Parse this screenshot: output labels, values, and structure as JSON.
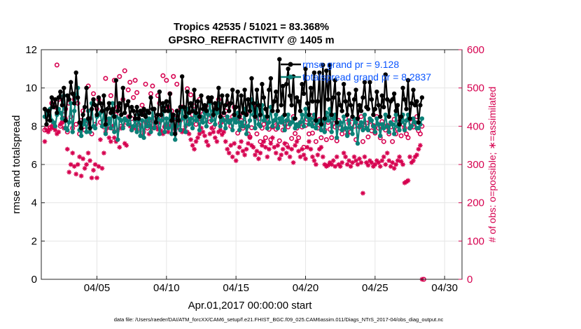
{
  "chart_data": {
    "type": "line",
    "title": "Tropics 42535 / 51021 = 83.368%",
    "subtitle": "GPSRO_REFRACTIVITY @ 1405 m",
    "xlabel": "Apr.01,2017 00:00:00 start",
    "ylabel": "rmse and totalspread",
    "ylabel_right": "# of obs: o=possible; ∗=assimilated",
    "footnote": "data file: /Users/raeder/DAI/ATM_forcXX/CAM6_setup/f.e21.FHIST_BGC.f09_025.CAM6assim.011/Diags_NTrS_2017-04/obs_diag_output.nc",
    "xlim": [
      1,
      31.25
    ],
    "ylim": [
      0,
      12
    ],
    "ylim_right": [
      0,
      600
    ],
    "x_ticks": [
      5,
      10,
      15,
      20,
      25,
      30
    ],
    "x_tick_labels": [
      "04/05",
      "04/10",
      "04/15",
      "04/20",
      "04/25",
      "04/30"
    ],
    "y_ticks": [
      0,
      2,
      4,
      6,
      8,
      10,
      12
    ],
    "y_ticks_right": [
      0,
      100,
      200,
      300,
      400,
      500,
      600
    ],
    "legend": {
      "position": "top-right",
      "entries": [
        "rmse grand pr = 9.128",
        "totalspread grand pr = 8.2837"
      ]
    },
    "series": [
      {
        "name": "rmse grand pr = 9.128",
        "axis": "left",
        "color": "#000000",
        "marker": "filled-circle",
        "values": [
          8.9,
          8.1,
          8.8,
          8.3,
          9.5,
          9.0,
          9.4,
          8.7,
          9.5,
          9.8,
          9.1,
          10.0,
          8.3,
          9.6,
          9.4,
          10.3,
          9.7,
          9.2,
          10.8,
          9.5,
          8.2,
          7.9,
          8.6,
          9.0,
          10.0,
          8.4,
          7.9,
          8.9,
          9.4,
          9.1,
          8.6,
          9.5,
          9.2,
          8.8,
          9.6,
          8.1,
          8.9,
          9.2,
          8.7,
          8.9,
          8.5,
          10.4,
          8.8,
          9.2,
          8.6,
          10.0,
          8.7,
          9.1,
          9.3,
          8.5,
          9.0,
          8.8,
          8.4,
          9.0,
          8.4,
          8.8,
          8.6,
          8.9,
          8.5,
          8.8,
          8.7,
          9.5,
          8.9,
          8.9,
          8.2,
          8.6,
          9.8,
          8.6,
          9.2,
          8.8,
          9.3,
          8.8,
          9.7,
          8.3,
          8.6,
          7.6,
          8.8,
          8.3,
          9.0,
          10.6,
          9.0,
          8.5,
          9.8,
          8.7,
          9.2,
          8.8,
          9.9,
          8.7,
          9.3,
          8.5,
          9.6,
          8.9,
          9.1,
          8.8,
          9.5,
          9.3,
          9.5,
          8.6,
          9.2,
          8.9,
          10.0,
          8.5,
          9.6,
          8.7,
          9.1,
          9.6,
          8.8,
          9.2,
          9.9,
          8.6,
          9.0,
          9.8,
          8.5,
          9.6,
          8.7,
          9.9,
          8.6,
          9.4,
          8.8,
          10.5,
          9.2,
          8.5,
          9.9,
          9.1,
          8.6,
          10.2,
          9.5,
          8.9,
          8.5,
          9.9,
          10.5,
          8.8,
          9.3,
          9.8,
          8.8,
          11.5,
          9.1,
          10.1,
          8.6,
          10.2,
          11.0,
          9.6,
          9.1,
          10.6,
          8.4,
          9.5,
          9.3,
          8.8,
          10.2,
          9.7,
          11.0,
          9.2,
          8.6,
          10.0,
          9.3,
          10.8,
          8.3,
          9.3,
          10.8,
          8.1,
          11.2,
          8.4,
          10.9,
          9.4,
          11.2,
          8.6,
          9.5,
          10.4,
          8.2,
          9.7,
          9.1,
          8.8,
          10.2,
          9.3,
          8.6,
          9.7,
          9.1,
          8.5,
          9.4,
          9.9,
          8.4,
          9.1,
          8.8,
          9.5,
          10.3,
          9.0,
          8.9,
          10.3,
          9.4,
          8.6,
          8.9,
          9.8,
          9.1,
          8.5,
          9.6,
          9.0,
          10.7,
          9.4,
          8.5,
          9.3,
          9.4,
          9.7,
          8.8,
          9.1,
          8.1,
          8.5,
          10.0,
          9.4,
          8.9,
          10.4,
          8.4,
          9.2,
          9.9,
          9.1,
          9.3,
          8.2,
          9.1,
          9.5
        ],
        "x_start": 1.25,
        "x_step": 0.125
      },
      {
        "name": "totalspread grand pr = 8.2837",
        "axis": "left",
        "color": "#0b8077",
        "marker": "filled-circle",
        "values": [
          8.5,
          8.7,
          8.6,
          8.9,
          8.3,
          8.2,
          8.0,
          8.6,
          8.9,
          8.7,
          8.4,
          9.6,
          7.9,
          7.8,
          8.2,
          9.2,
          7.7,
          8.8,
          9.6,
          10.0,
          7.8,
          7.5,
          8.1,
          8.3,
          7.7,
          8.8,
          7.7,
          9.2,
          8.0,
          7.9,
          8.5,
          8.6,
          8.7,
          8.0,
          8.8,
          7.6,
          8.1,
          8.4,
          7.9,
          9.2,
          7.7,
          8.5,
          7.3,
          8.4,
          8.3,
          7.9,
          8.4,
          8.3,
          8.1,
          8.5,
          7.8,
          8.0,
          8.3,
          7.7,
          8.6,
          7.5,
          8.3,
          7.4,
          8.6,
          8.0,
          8.4,
          7.7,
          8.9,
          7.9,
          8.2,
          8.4,
          7.6,
          8.3,
          9.0,
          7.7,
          8.4,
          7.9,
          8.8,
          7.6,
          8.4,
          7.3,
          8.0,
          8.7,
          7.8,
          8.9,
          8.4,
          7.7,
          8.9,
          8.1,
          8.4,
          7.9,
          8.8,
          8.3,
          8.6,
          7.8,
          8.5,
          8.2,
          8.7,
          8.0,
          8.6,
          9.2,
          8.3,
          8.8,
          8.1,
          8.7,
          9.2,
          8.0,
          8.4,
          8.3,
          7.9,
          8.5,
          8.2,
          8.3,
          7.8,
          8.4,
          8.2,
          8.7,
          7.8,
          8.2,
          8.0,
          8.9,
          7.6,
          8.0,
          8.3,
          9.4,
          8.6,
          7.9,
          9.2,
          8.1,
          8.0,
          9.1,
          8.3,
          8.5,
          7.9,
          8.2,
          9.0,
          8.0,
          8.3,
          8.6,
          7.9,
          8.4,
          8.2,
          8.5,
          7.8,
          8.3,
          8.6,
          8.1,
          8.2,
          8.4,
          7.9,
          8.1,
          8.0,
          8.2,
          8.6,
          8.0,
          8.9,
          8.5,
          8.1,
          8.4,
          8.0,
          8.6,
          7.9,
          8.2,
          8.3,
          7.8,
          8.3,
          7.7,
          8.7,
          8.3,
          8.9,
          7.7,
          8.4,
          8.6,
          7.4,
          8.1,
          8.2,
          7.8,
          8.5,
          7.9,
          7.5,
          8.3,
          7.9,
          7.6,
          8.4,
          8.2,
          7.1,
          8.0,
          8.2,
          7.8,
          8.6,
          7.9,
          7.8,
          8.4,
          8.3,
          8.0,
          7.7,
          8.4,
          8.1,
          7.5,
          8.1,
          7.9,
          8.6,
          8.0,
          7.7,
          8.2,
          8.1,
          7.6,
          8.6,
          8.0,
          7.8,
          8.2,
          8.6,
          7.8,
          8.3,
          8.6,
          7.9,
          8.0,
          8.4,
          8.2,
          7.9,
          7.9,
          8.1,
          8.4
        ],
        "x_start": 1.25,
        "x_step": 0.125
      },
      {
        "name": "possible obs (o)",
        "axis": "right",
        "color": "#d6004f",
        "marker": "open-circle",
        "values": [
          390,
          395,
          420,
          396,
          460,
          405,
          450,
          560,
          470,
          400,
          410,
          430,
          445,
          385,
          460,
          425,
          395,
          470,
          405,
          460,
          380,
          415,
          440,
          390,
          405,
          505,
          420,
          380,
          485,
          405,
          445,
          470,
          410,
          440,
          398,
          525,
          408,
          418,
          480,
          395,
          520,
          430,
          450,
          530,
          400,
          470,
          545,
          410,
          495,
          515,
          420,
          475,
          520,
          488,
          405,
          410,
          455,
          430,
          510,
          395,
          415,
          485,
          505,
          420,
          410,
          480,
          460,
          420,
          532,
          398,
          520,
          450,
          485,
          440,
          530,
          420,
          510,
          440,
          415,
          450,
          422,
          425,
          498,
          413,
          482,
          430,
          453,
          405,
          426,
          470,
          418,
          432,
          440,
          425,
          448,
          412,
          426,
          397,
          436,
          445,
          470,
          408,
          412,
          430,
          440,
          418,
          459,
          400,
          425,
          450,
          420,
          382,
          428,
          415,
          395,
          410,
          432,
          380,
          372,
          396,
          450,
          430,
          380,
          420,
          360,
          395,
          405,
          370,
          412,
          392,
          365,
          398,
          410,
          392,
          400,
          362,
          420,
          390,
          405,
          352,
          398,
          410,
          368,
          425,
          381,
          395,
          370,
          410,
          398,
          345,
          402,
          418,
          380,
          428,
          382,
          410,
          360,
          395,
          418,
          370,
          408,
          390,
          365,
          410,
          392,
          370,
          408,
          398,
          362,
          415,
          395,
          380,
          392,
          420,
          378,
          408,
          385,
          420,
          400,
          365,
          410,
          398,
          425,
          360,
          395,
          408,
          372,
          412,
          388,
          402,
          382,
          425,
          395,
          370,
          412,
          360,
          390,
          402,
          380,
          398,
          360,
          418,
          380,
          392,
          412,
          375,
          405,
          395,
          380,
          370,
          395,
          410,
          398,
          410,
          425,
          388,
          380,
          400,
          0
        ],
        "x_start": 1.25,
        "x_step": 0.125
      },
      {
        "name": "assimilated obs (∗)",
        "axis": "right",
        "color": "#d6004f",
        "marker": "asterisk",
        "values": [
          360,
          390,
          385,
          392,
          400,
          395,
          390,
          380,
          385,
          405,
          410,
          395,
          420,
          340,
          280,
          300,
          330,
          295,
          275,
          300,
          320,
          270,
          315,
          290,
          300,
          330,
          310,
          265,
          285,
          300,
          265,
          295,
          365,
          290,
          330,
          385,
          395,
          370,
          360,
          400,
          370,
          360,
          390,
          345,
          395,
          400,
          355,
          350,
          425,
          400,
          390,
          395,
          415,
          390,
          430,
          400,
          375,
          385,
          410,
          405,
          380,
          400,
          395,
          410,
          398,
          392,
          410,
          388,
          380,
          400,
          405,
          385,
          400,
          410,
          395,
          385,
          395,
          405,
          390,
          385,
          390,
          400,
          385,
          380,
          365,
          350,
          340,
          360,
          370,
          380,
          395,
          385,
          375,
          360,
          350,
          380,
          395,
          385,
          370,
          360,
          385,
          390,
          378,
          385,
          360,
          340,
          330,
          350,
          320,
          355,
          310,
          330,
          345,
          360,
          335,
          325,
          340,
          355,
          370,
          350,
          345,
          325,
          335,
          315,
          330,
          350,
          360,
          345,
          320,
          340,
          355,
          370,
          345,
          330,
          350,
          315,
          325,
          340,
          355,
          330,
          345,
          320,
          340,
          305,
          350,
          360,
          335,
          320,
          340,
          325,
          315,
          345,
          360,
          340,
          320,
          310,
          300,
          325,
          340,
          345,
          320,
          300,
          295,
          298,
          305,
          300,
          310,
          295,
          320,
          300,
          295,
          305,
          330,
          320,
          300,
          310,
          295,
          305,
          320,
          310,
          300,
          315,
          305,
          225,
          320,
          305,
          298,
          310,
          305,
          295,
          300,
          310,
          305,
          295,
          310,
          320,
          300,
          330,
          310,
          295,
          305,
          290,
          300,
          310,
          320,
          308,
          300,
          252,
          255,
          258,
          320,
          305,
          310,
          320,
          325,
          340,
          350,
          0
        ],
        "x_start": 1.25,
        "x_step": 0.125
      }
    ]
  }
}
